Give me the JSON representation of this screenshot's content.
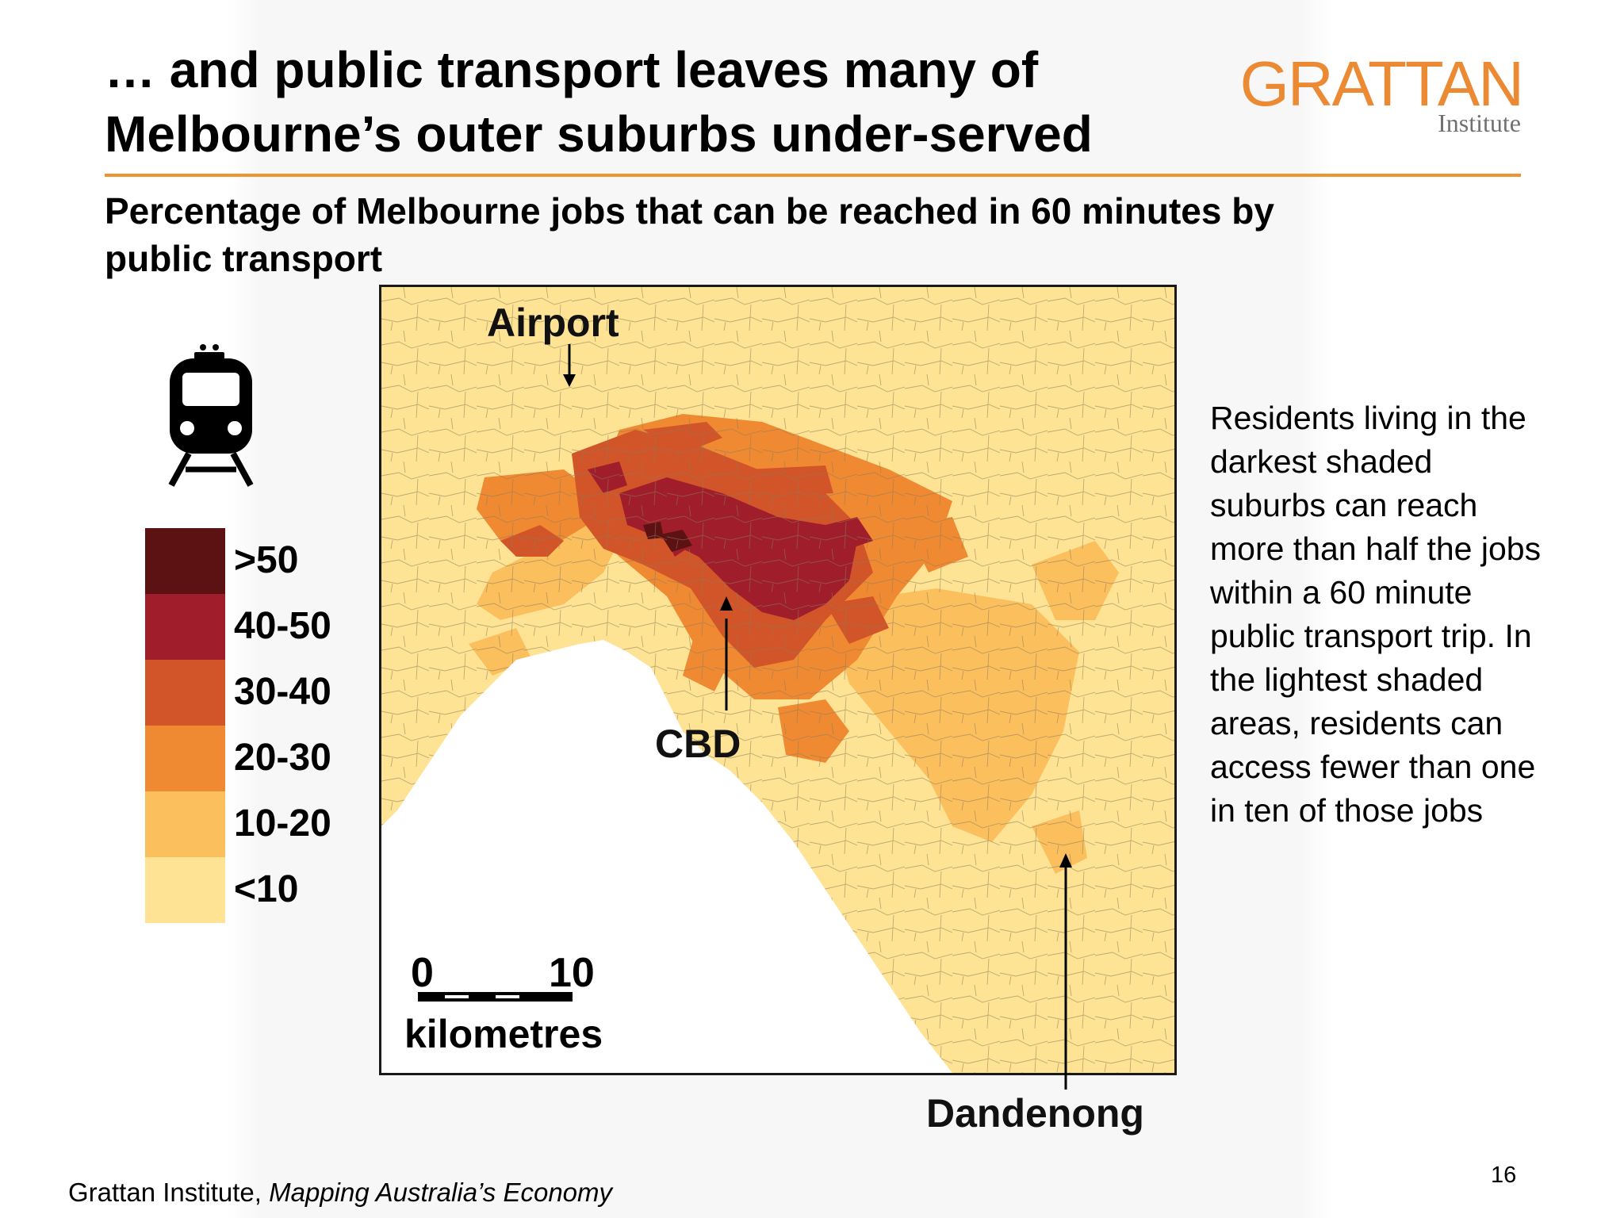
{
  "slide": {
    "title_line1": "…  and public transport leaves many of",
    "title_line2": "Melbourne’s outer suburbs under-served",
    "subtitle_line1": "Percentage of Melbourne jobs that can be reached in 60 minutes by",
    "subtitle_line2": "public transport",
    "page_number": "16"
  },
  "logo": {
    "wordmark": "GRATTAN",
    "subword": "Institute",
    "color": "#ec8a34"
  },
  "icon": {
    "name": "train-icon"
  },
  "legend": {
    "items": [
      {
        "label": ">50",
        "color": "#5c1212"
      },
      {
        "label": "40-50",
        "color": "#a01e2b"
      },
      {
        "label": "30-40",
        "color": "#d2552a"
      },
      {
        "label": "20-30",
        "color": "#f08a32"
      },
      {
        "label": "10-20",
        "color": "#fbbf5e"
      },
      {
        "label": "<10",
        "color": "#fde393"
      }
    ]
  },
  "map": {
    "labels": {
      "airport": "Airport",
      "cbd": "CBD",
      "dandenong": "Dandenong"
    },
    "scale": {
      "start": "0",
      "end": "10",
      "unit": "kilometres"
    }
  },
  "annotation": {
    "text": "Residents living in the darkest shaded suburbs can reach more than half the jobs within a 60 minute public transport trip. In the lightest shaded areas, residents can access fewer than one in ten of those jobs"
  },
  "footer": {
    "source_org": "Grattan Institute, ",
    "source_title": "Mapping Australia’s Economy"
  }
}
